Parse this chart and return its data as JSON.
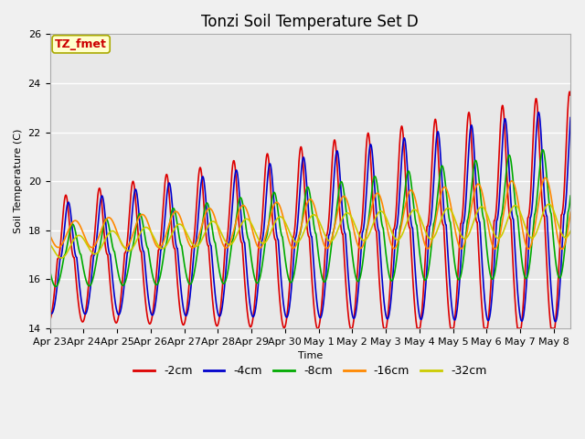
{
  "title": "Tonzi Soil Temperature Set D",
  "xlabel": "Time",
  "ylabel": "Soil Temperature (C)",
  "ylim": [
    14,
    26
  ],
  "x_tick_labels": [
    "Apr 23",
    "Apr 24",
    "Apr 25",
    "Apr 26",
    "Apr 27",
    "Apr 28",
    "Apr 29",
    "Apr 30",
    "May 1",
    "May 2",
    "May 3",
    "May 4",
    "May 5",
    "May 6",
    "May 7",
    "May 8"
  ],
  "legend_labels": [
    "-2cm",
    "-4cm",
    "-8cm",
    "-16cm",
    "-32cm"
  ],
  "line_colors": [
    "#dd0000",
    "#0000cc",
    "#00aa00",
    "#ff8800",
    "#cccc00"
  ],
  "annotation_text": "TZ_fmet",
  "annotation_color": "#cc0000",
  "annotation_bg": "#ffffcc",
  "annotation_border": "#aaaa00",
  "plot_bg": "#e8e8e8",
  "fig_bg": "#f0f0f0",
  "grid_color": "#ffffff",
  "title_fontsize": 12,
  "tick_fontsize": 8,
  "legend_fontsize": 9
}
